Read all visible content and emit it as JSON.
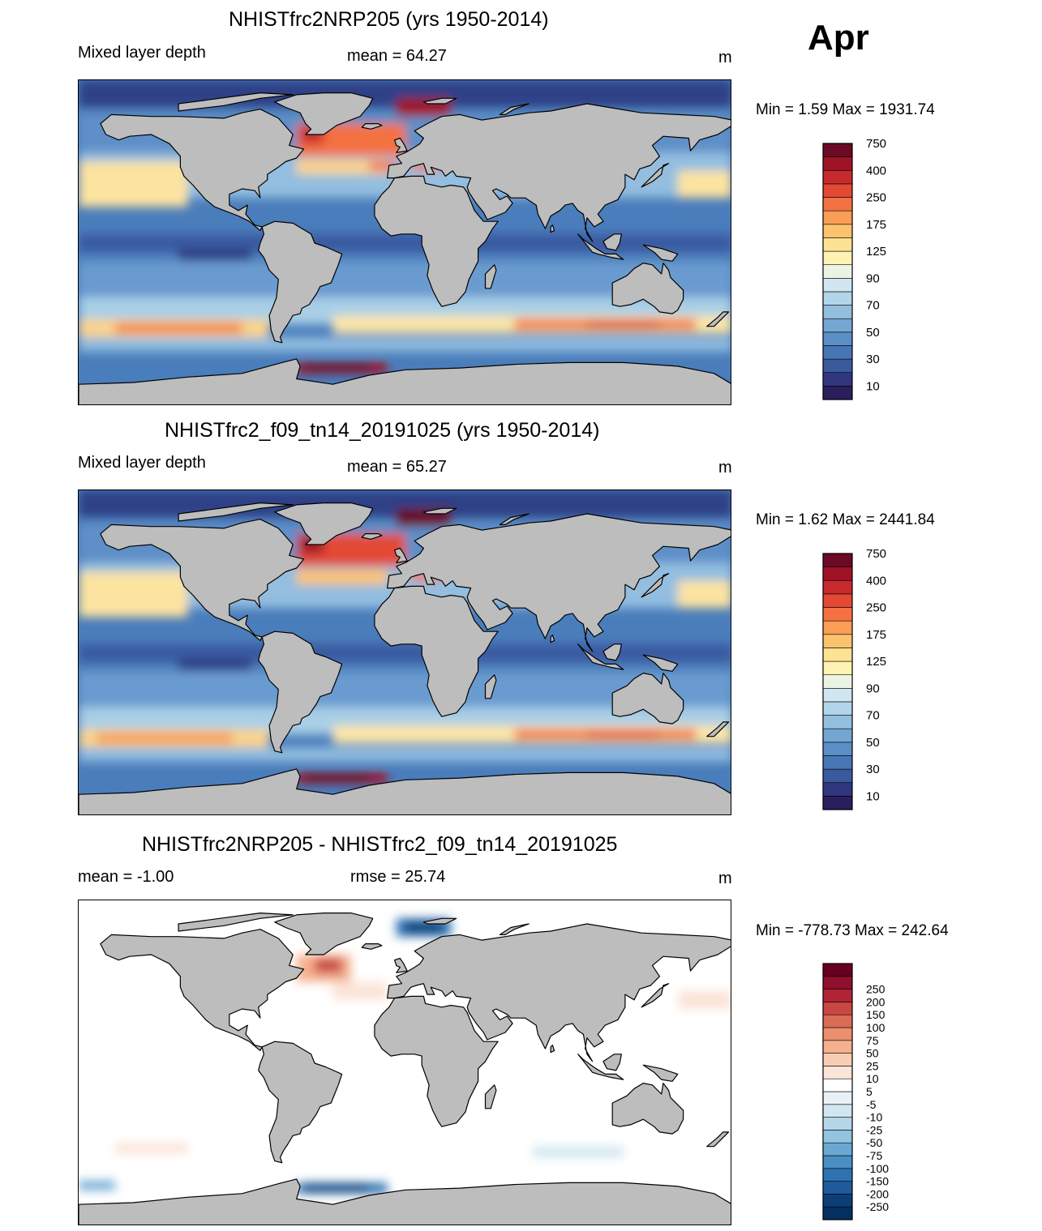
{
  "month": "Apr",
  "panels": [
    {
      "title": "NHISTfrc2NRP205 (yrs 1950-2014)",
      "left": "Mixed layer depth",
      "center": "mean =  64.27",
      "units": "m",
      "minmax": "Min =    1.59 Max = 1931.74"
    },
    {
      "title": "NHISTfrc2_f09_tn14_20191025 (yrs 1950-2014)",
      "left": "Mixed layer depth",
      "center": "mean =  65.27",
      "units": "m",
      "minmax": "Min =    1.62 Max = 2441.84"
    },
    {
      "title": "NHISTfrc2NRP205 - NHISTfrc2_f09_tn14_20191025",
      "left": "mean =  -1.00",
      "center": "rmse =  25.74",
      "units": "m",
      "minmax": "Min = -778.73 Max = 242.64"
    }
  ],
  "colorbar_mld": {
    "colors": [
      "#2a1e5c",
      "#30377f",
      "#3a5a9e",
      "#4776b5",
      "#5a8fc6",
      "#74a6d2",
      "#93bfdf",
      "#b2d5e9",
      "#d0e6f1",
      "#ebf4e4",
      "#fff3b3",
      "#fde294",
      "#fcc36f",
      "#fa9e55",
      "#f47143",
      "#e34934",
      "#c72a2d",
      "#a01326",
      "#6b0a24"
    ],
    "labels": [
      "10",
      "30",
      "50",
      "70",
      "90",
      "125",
      "175",
      "250",
      "400",
      "750"
    ]
  },
  "colorbar_diff": {
    "colors": [
      "#053061",
      "#0c3f77",
      "#1f5a9a",
      "#2f72b3",
      "#4a8ec4",
      "#6aa8d3",
      "#92c3df",
      "#b5d6e9",
      "#d2e6f1",
      "#e8f1f7",
      "#ffffff",
      "#fbe4d8",
      "#f9cdb3",
      "#f5b08e",
      "#eb8f6d",
      "#db6b55",
      "#c94742",
      "#b02435",
      "#8f0f2c",
      "#67001f"
    ],
    "labels": [
      "-250",
      "-200",
      "-150",
      "-100",
      "-75",
      "-50",
      "-25",
      "-10",
      "-5",
      "5",
      "10",
      "25",
      "50",
      "75",
      "100",
      "150",
      "200",
      "250"
    ]
  },
  "maps": [
    {
      "ocean_base": "#4a7dbb",
      "zones": [
        {
          "type": "band",
          "lat": [
            75,
            90
          ],
          "color": "#2f3f86"
        },
        {
          "type": "band",
          "lat": [
            50,
            72
          ],
          "color": "#5f8fc8"
        },
        {
          "type": "band",
          "lat": [
            25,
            50
          ],
          "color": "#93bee0"
        },
        {
          "type": "band",
          "lat": [
            20,
            45
          ],
          "lon": [
            -180,
            -120
          ],
          "color": "#fde3a0"
        },
        {
          "type": "band",
          "lat": [
            25,
            40
          ],
          "lon": [
            150,
            180
          ],
          "color": "#fde3a0"
        },
        {
          "type": "band",
          "lat": [
            -5,
            5
          ],
          "color": "#3a5aa0"
        },
        {
          "type": "band",
          "lat": [
            -12,
            -3
          ],
          "lon": [
            -125,
            -85
          ],
          "color": "#2f3f86"
        },
        {
          "type": "band",
          "lat": [
            -30,
            -10
          ],
          "color": "#6b9bd0"
        },
        {
          "type": "band",
          "lat": [
            -45,
            -30
          ],
          "color": "#a9cfe6"
        },
        {
          "type": "band",
          "lat": [
            -52,
            -42
          ],
          "lon": [
            -180,
            -75
          ],
          "color": "#fbd38a"
        },
        {
          "type": "band",
          "lat": [
            -50,
            -44
          ],
          "lon": [
            -160,
            -90
          ],
          "color": "#f58a4e"
        },
        {
          "type": "band",
          "lat": [
            -50,
            -40
          ],
          "lon": [
            -40,
            180
          ],
          "color": "#fde6a8"
        },
        {
          "type": "band",
          "lat": [
            -48,
            -42
          ],
          "lon": [
            60,
            160
          ],
          "color": "#f37a48"
        },
        {
          "type": "band",
          "lat": [
            -47,
            -43
          ],
          "lon": [
            100,
            140
          ],
          "color": "#d8452f"
        },
        {
          "type": "band",
          "lat": [
            -60,
            -52
          ],
          "color": "#8fbcdf"
        },
        {
          "type": "band",
          "lat": [
            -72,
            -66
          ],
          "lon": [
            -60,
            -10
          ],
          "color": "#a01326"
        },
        {
          "type": "band",
          "lat": [
            -71,
            -67
          ],
          "lon": [
            -55,
            -20
          ],
          "color": "#6b0a24"
        },
        {
          "type": "band",
          "lat": [
            48,
            66
          ],
          "lon": [
            -60,
            0
          ],
          "color": "#f47143"
        },
        {
          "type": "band",
          "lat": [
            55,
            65
          ],
          "lon": [
            -58,
            -45
          ],
          "color": "#c72a2d"
        },
        {
          "type": "band",
          "lat": [
            70,
            80
          ],
          "lon": [
            -5,
            25
          ],
          "color": "#a01326"
        },
        {
          "type": "band",
          "lat": [
            38,
            46
          ],
          "lon": [
            -60,
            -10
          ],
          "color": "#fbd38a"
        },
        {
          "type": "band",
          "lat": [
            40,
            45
          ],
          "lon": [
            -20,
            -5
          ],
          "color": "#f47143"
        },
        {
          "type": "band",
          "lat": [
            40,
            44
          ],
          "lon": [
            3,
            20
          ],
          "color": "#f47143"
        }
      ]
    },
    {
      "ocean_base": "#4a7dbb",
      "zones": [
        {
          "type": "band",
          "lat": [
            75,
            90
          ],
          "color": "#2f3f86"
        },
        {
          "type": "band",
          "lat": [
            50,
            72
          ],
          "color": "#5f8fc8"
        },
        {
          "type": "band",
          "lat": [
            25,
            50
          ],
          "color": "#93bee0"
        },
        {
          "type": "band",
          "lat": [
            20,
            45
          ],
          "lon": [
            -180,
            -120
          ],
          "color": "#fde3a0"
        },
        {
          "type": "band",
          "lat": [
            25,
            40
          ],
          "lon": [
            150,
            180
          ],
          "color": "#fde3a0"
        },
        {
          "type": "band",
          "lat": [
            -5,
            5
          ],
          "color": "#3a5aa0"
        },
        {
          "type": "band",
          "lat": [
            -12,
            -3
          ],
          "lon": [
            -125,
            -85
          ],
          "color": "#2f3f86"
        },
        {
          "type": "band",
          "lat": [
            -30,
            -10
          ],
          "color": "#6b9bd0"
        },
        {
          "type": "band",
          "lat": [
            -45,
            -30
          ],
          "color": "#a9cfe6"
        },
        {
          "type": "band",
          "lat": [
            -52,
            -42
          ],
          "lon": [
            -180,
            -75
          ],
          "color": "#fbd38a"
        },
        {
          "type": "band",
          "lat": [
            -50,
            -44
          ],
          "lon": [
            -170,
            -95
          ],
          "color": "#fa9e55"
        },
        {
          "type": "band",
          "lat": [
            -50,
            -40
          ],
          "lon": [
            -40,
            180
          ],
          "color": "#fde6a8"
        },
        {
          "type": "band",
          "lat": [
            -48,
            -42
          ],
          "lon": [
            60,
            160
          ],
          "color": "#f37a48"
        },
        {
          "type": "band",
          "lat": [
            -47,
            -43
          ],
          "lon": [
            100,
            140
          ],
          "color": "#e34934"
        },
        {
          "type": "band",
          "lat": [
            -60,
            -52
          ],
          "color": "#8fbcdf"
        },
        {
          "type": "band",
          "lat": [
            -72,
            -66
          ],
          "lon": [
            -60,
            -10
          ],
          "color": "#a01326"
        },
        {
          "type": "band",
          "lat": [
            -71,
            -67
          ],
          "lon": [
            -55,
            -20
          ],
          "color": "#6b0a24"
        },
        {
          "type": "band",
          "lat": [
            48,
            66
          ],
          "lon": [
            -60,
            0
          ],
          "color": "#e34934"
        },
        {
          "type": "band",
          "lat": [
            55,
            65
          ],
          "lon": [
            -58,
            -45
          ],
          "color": "#a01326"
        },
        {
          "type": "band",
          "lat": [
            70,
            80
          ],
          "lon": [
            -5,
            25
          ],
          "color": "#6b0a24"
        },
        {
          "type": "band",
          "lat": [
            38,
            46
          ],
          "lon": [
            -60,
            -10
          ],
          "color": "#fcc36f"
        },
        {
          "type": "band",
          "lat": [
            40,
            45
          ],
          "lon": [
            3,
            20
          ],
          "color": "#f47143"
        }
      ]
    },
    {
      "ocean_base": "#ffffff",
      "zones": [
        {
          "type": "band",
          "lat": [
            45,
            60
          ],
          "lon": [
            -60,
            -30
          ],
          "color": "#f5b08e"
        },
        {
          "type": "band",
          "lat": [
            50,
            58
          ],
          "lon": [
            -50,
            -35
          ],
          "color": "#c94742"
        },
        {
          "type": "band",
          "lat": [
            70,
            80
          ],
          "lon": [
            -5,
            25
          ],
          "color": "#2f72b3"
        },
        {
          "type": "band",
          "lat": [
            72,
            78
          ],
          "lon": [
            0,
            20
          ],
          "color": "#0c3f77"
        },
        {
          "type": "band",
          "lat": [
            35,
            45
          ],
          "lon": [
            -40,
            -10
          ],
          "color": "#fbe4d8"
        },
        {
          "type": "band",
          "lat": [
            30,
            40
          ],
          "lon": [
            150,
            180
          ],
          "color": "#fbe4d8"
        },
        {
          "type": "band",
          "lat": [
            -50,
            -44
          ],
          "lon": [
            -160,
            -120
          ],
          "color": "#fbe4d8"
        },
        {
          "type": "band",
          "lat": [
            -52,
            -46
          ],
          "lon": [
            70,
            120
          ],
          "color": "#d2e6f1"
        },
        {
          "type": "band",
          "lat": [
            -72,
            -66
          ],
          "lon": [
            -60,
            -10
          ],
          "color": "#2f72b3"
        },
        {
          "type": "band",
          "lat": [
            -71,
            -67
          ],
          "lon": [
            -55,
            -20
          ],
          "color": "#0c3f77"
        },
        {
          "type": "band",
          "lat": [
            -70,
            -65
          ],
          "lon": [
            -180,
            -160
          ],
          "color": "#6aa8d3"
        }
      ]
    }
  ]
}
